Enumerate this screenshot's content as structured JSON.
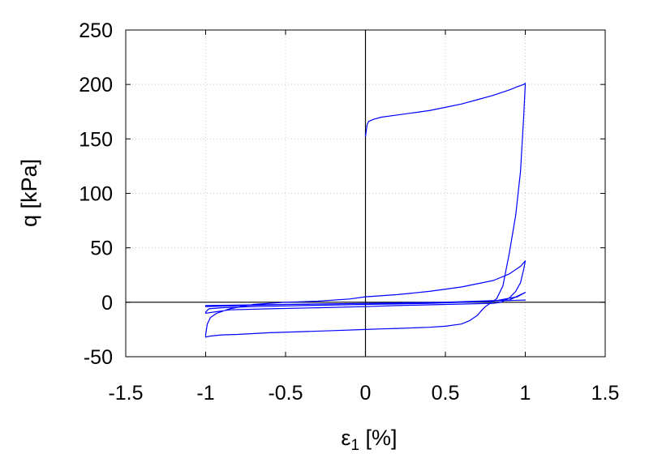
{
  "chart_data": {
    "type": "line",
    "xlabel_main": "ε",
    "xlabel_sub": "1",
    "xlabel_unit": " [%]",
    "ylabel": "q [kPa]",
    "xlim": [
      -1.5,
      1.5
    ],
    "ylim": [
      -50,
      250
    ],
    "xticks": [
      -1.5,
      -1,
      -0.5,
      0,
      0.5,
      1,
      1.5
    ],
    "xtick_labels": [
      "-1.5",
      "-1",
      "-0.5",
      "0",
      "0.5",
      "1",
      "1.5"
    ],
    "yticks": [
      -50,
      0,
      50,
      100,
      150,
      200,
      250
    ],
    "ytick_labels": [
      "-50",
      "0",
      "50",
      "100",
      "150",
      "200",
      "250"
    ],
    "grid": true,
    "zero_lines": true,
    "legend": "none",
    "line_color": "#0000ff",
    "series": [
      {
        "x": [
          0,
          0.01,
          0.02,
          0.05,
          0.1,
          0.2,
          0.3,
          0.4,
          0.5,
          0.6,
          0.7,
          0.8,
          0.9,
          0.95,
          0.99,
          1.0,
          1.0,
          0.99,
          0.97,
          0.94,
          0.9,
          0.86,
          0.82,
          0.79,
          0.77,
          0.75,
          0.73,
          0.7,
          0.65,
          0.6,
          0.5,
          0.4,
          0.3,
          0.2,
          0.1,
          0,
          -0.2,
          -0.4,
          -0.6,
          -0.8,
          -0.9,
          -0.97,
          -1.0,
          -1.0,
          -0.99,
          -0.97,
          -0.93,
          -0.85,
          -0.7,
          -0.5,
          -0.3,
          -0.1,
          0,
          0.2,
          0.4,
          0.6,
          0.8,
          0.9,
          0.97,
          1.0,
          1.0,
          0.99,
          0.97,
          0.94,
          0.9,
          0.85,
          0.8,
          0.5,
          0.2,
          0,
          -0.3,
          -0.6,
          -0.85,
          -1.0,
          -1.0,
          -0.98,
          -0.9,
          -0.7,
          -0.4,
          0,
          0.4,
          0.8,
          0.95,
          1.0,
          1.0,
          0.9,
          0.5,
          0,
          -0.5,
          -1.0,
          -1.0,
          -0.5,
          0,
          0.5,
          1.0,
          1.0,
          0.5,
          0,
          -0.5,
          -1.0
        ],
        "y": [
          152,
          163,
          166,
          168,
          170,
          172,
          174,
          176,
          179,
          182,
          186,
          190,
          195,
          198,
          200,
          201,
          200,
          170,
          120,
          80,
          45,
          15,
          3,
          0,
          -2,
          -4,
          -7,
          -12,
          -17,
          -20,
          -22,
          -23,
          -23.5,
          -24,
          -24.5,
          -25,
          -26,
          -27,
          -28,
          -29.5,
          -30,
          -31,
          -32,
          -30,
          -20,
          -14,
          -10,
          -6,
          -2,
          0,
          1,
          3,
          5,
          7,
          10,
          14,
          20,
          26,
          33,
          38,
          38,
          30,
          18,
          10,
          4,
          0,
          -1,
          -2,
          -3,
          -4,
          -5,
          -6,
          -7,
          -10,
          -9,
          -6,
          -5,
          -4,
          -3,
          -2,
          -1,
          1,
          5,
          9,
          9,
          2,
          0,
          -1,
          -2,
          -4,
          -3,
          -2,
          -1,
          0,
          2,
          2,
          0,
          -1,
          -2,
          -3
        ]
      }
    ]
  }
}
